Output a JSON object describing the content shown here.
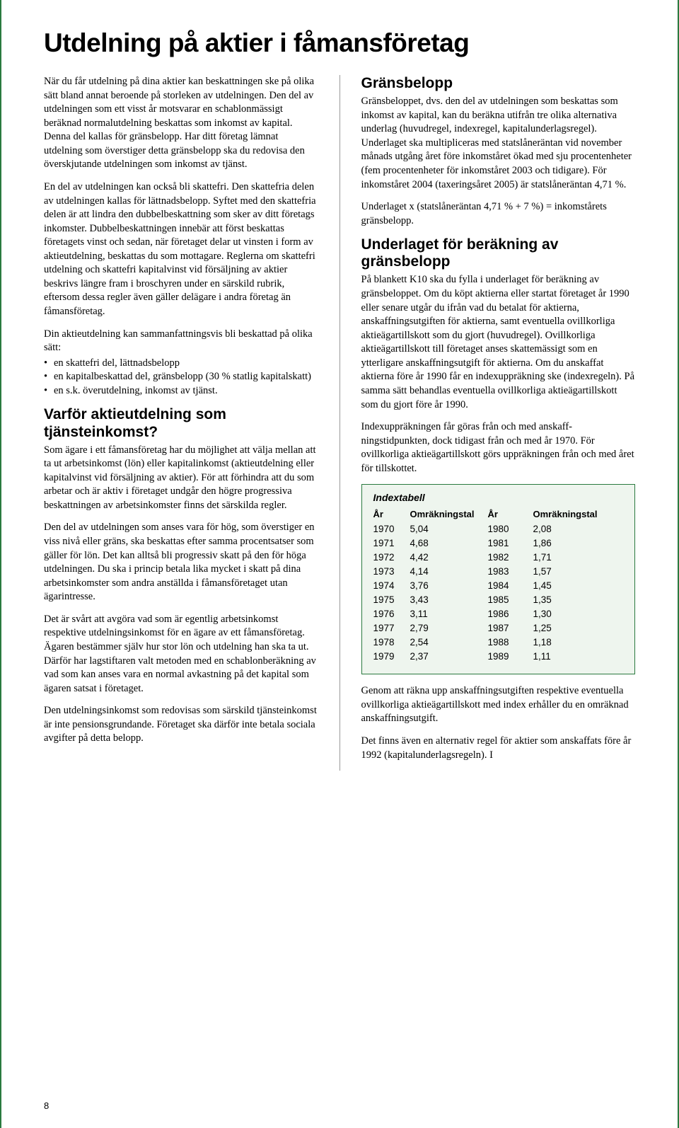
{
  "title": "Utdelning på aktier i fåmansföretag",
  "page_number": "8",
  "left": {
    "p1": "När du får utdelning på dina aktier kan beskattningen ske på olika sätt bland annat beroende på storleken av utdelningen. Den del av utdelningen som ett visst år motsvarar en schablonmässigt beräknad normalutdel­ning beskattas som inkomst av kapital. Denna del kallas för gränsbelopp. Har ditt företag lämnat utdelning som överstiger detta gränsbelopp ska du redovisa den överskjutande utdelningen som inkomst av tjänst.",
    "p2": "En del av utdelningen kan också bli skattefri. Den skattefria delen av utdelningen kallas för lättnads­belopp. Syftet med den skattefria delen är att lindra den dubbelbeskattning som sker av ditt företags inkomster. Dubbelbeskattningen innebär att först beskattas företagets vinst och sedan, när företaget delar ut vinsten i form av aktieutdelning, beskattas du som mottagare. Reglerna om skattefri utdelning och skattefri kapitalvinst vid försäljning av aktier beskrivs längre fram i broschyren under en särskild rubrik, eftersom dessa regler även gäller delägare i andra företag än fåmansföretag.",
    "p3": "Din aktieutdelning kan sammanfattningsvis bli beskattad på olika sätt:",
    "bullets": {
      "b1": "en skattefri del, lättnadsbelopp",
      "b2": "en kapitalbeskattad del, gränsbelopp (30 % statlig kapitalskatt)",
      "b3": "en s.k. överutdelning, inkomst av tjänst."
    },
    "h2a": "Varför aktieutdelning som tjänsteinkomst?",
    "p4": "Som ägare i ett fåmansföretag har du möjlighet att välja mellan att ta ut arbetsinkomst (lön) eller kapitalinkomst (aktieutdelning eller kapitalvinst vid försäljning av aktier). För att förhindra att du som arbetar och är aktiv i företaget undgår den högre progressiva beskatt­ningen av arbetsinkomster finns det särskilda regler.",
    "p5": "Den del av utdelningen som anses vara för hög, som överstiger en viss nivå eller gräns, ska beskattas efter samma procentsatser som gäller för lön. Det kan alltså bli progressiv skatt på den för höga utdel­ningen. Du ska i princip betala lika mycket i skatt på dina arbetsinkomster som andra anställda i fåmans­företaget utan ägarintresse.",
    "p6": "Det är svårt att avgöra vad som är egentlig arbets­inkomst respektive utdelningsinkomst för en ägare av ett fåmansföretag. Ägaren bestämmer själv hur stor lön och utdelning han ska ta ut. Därför har lag­stiftaren valt metoden med en schablonberäkning av vad som kan anses vara en normal avkastning på det kapital som ägaren satsat i företaget.",
    "p7": "Den utdelningsinkomst som redovisas som särskild tjänsteinkomst är inte pensionsgrundande. Företaget ska därför inte betala sociala avgifter på detta belopp."
  },
  "right": {
    "h2a": "Gränsbelopp",
    "p1": "Gränsbeloppet, dvs. den del av utdelningen som beskattas som inkomst av kapital, kan du beräkna utifrån tre olika alternativa underlag (huvudregel, indexregel, kapitalunderlagsregel). Underlaget ska multipliceras med statslåneräntan vid november månads utgång året före inkomståret ökad med sju procentenheter (fem procentenheter för inkomståret 2003 och tidigare). För inkomståret 2004 (taxerings­året 2005) är statslåneräntan 4,71 %.",
    "p2": "Underlaget x (statslåneräntan 4,71 % + 7 %) = inkomst­årets gränsbelopp.",
    "h2b": "Underlaget för beräkning av gränsbelopp",
    "p3": "På blankett K10 ska du fylla i underlaget för beräkning av gränsbeloppet. Om du köpt aktierna eller startat företaget år 1990 eller senare utgår du ifrån vad du betalat för aktierna, anskaffningsutgiften för aktierna, samt eventuella ovillkorliga aktieägartillskott som du gjort (huvudregel). Ovillkorliga aktieägartillskott till företaget anses skattemässigt som en ytterligare anskaffningsutgift för aktierna. Om du anskaffat aktierna före år 1990 får en indexuppräkning ske (indexregeln). På samma sätt behandlas eventuella ovillkorliga aktieägartillskott som du gjort före år 1990.",
    "p4": "Indexuppräkningen får göras från och med anskaff­ningstidpunkten, dock tidigast från och med år 1970. För ovillkorliga aktieägartillskott görs uppräkningen från och med året för tillskottet.",
    "p5": "Genom att räkna upp anskaffningsutgiften respekt­ive eventuella ovillkorliga aktieägartillskott med index erhåller du en omräknad anskaffningsutgift.",
    "p6": "Det finns även en alternativ regel för aktier som anskaffats före år 1992 (kapitalunderlagsregeln). I"
  },
  "indextable": {
    "title": "Indextabell",
    "head": {
      "c1": "År",
      "c2": "Omräkningstal",
      "c3": "År",
      "c4": "Omräkningstal"
    },
    "rows": [
      {
        "y1": "1970",
        "v1": "5,04",
        "y2": "1980",
        "v2": "2,08"
      },
      {
        "y1": "1971",
        "v1": "4,68",
        "y2": "1981",
        "v2": "1,86"
      },
      {
        "y1": "1972",
        "v1": "4,42",
        "y2": "1982",
        "v2": "1,71"
      },
      {
        "y1": "1973",
        "v1": "4,14",
        "y2": "1983",
        "v2": "1,57"
      },
      {
        "y1": "1974",
        "v1": "3,76",
        "y2": "1984",
        "v2": "1,45"
      },
      {
        "y1": "1975",
        "v1": "3,43",
        "y2": "1985",
        "v2": "1,35"
      },
      {
        "y1": "1976",
        "v1": "3,11",
        "y2": "1986",
        "v2": "1,30"
      },
      {
        "y1": "1977",
        "v1": "2,79",
        "y2": "1987",
        "v2": "1,25"
      },
      {
        "y1": "1978",
        "v1": "2,54",
        "y2": "1988",
        "v2": "1,18"
      },
      {
        "y1": "1979",
        "v1": "2,37",
        "y2": "1989",
        "v2": "1,11"
      }
    ]
  }
}
